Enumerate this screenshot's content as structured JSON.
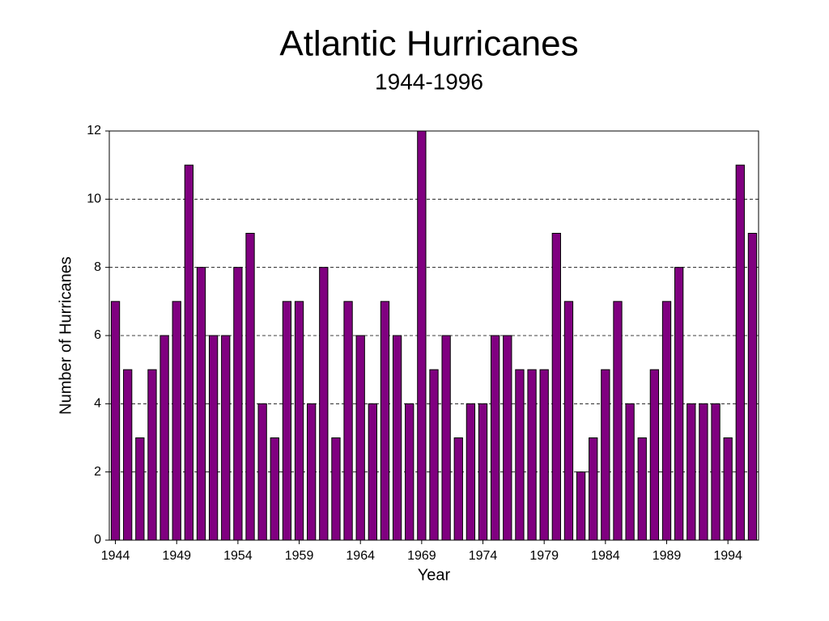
{
  "chart_data": {
    "type": "bar",
    "title": "Atlantic Hurricanes",
    "subtitle": "1944-1996",
    "x_label": "Year",
    "y_label": "Number of Hurricanes",
    "x": [
      1944,
      1945,
      1946,
      1947,
      1948,
      1949,
      1950,
      1951,
      1952,
      1953,
      1954,
      1955,
      1956,
      1957,
      1958,
      1959,
      1960,
      1961,
      1962,
      1963,
      1964,
      1965,
      1966,
      1967,
      1968,
      1969,
      1970,
      1971,
      1972,
      1973,
      1974,
      1975,
      1976,
      1977,
      1978,
      1979,
      1980,
      1981,
      1982,
      1983,
      1984,
      1985,
      1986,
      1987,
      1988,
      1989,
      1990,
      1991,
      1992,
      1993,
      1994,
      1995,
      1996
    ],
    "values": [
      7,
      5,
      3,
      5,
      6,
      7,
      11,
      8,
      6,
      6,
      8,
      9,
      4,
      3,
      7,
      7,
      4,
      8,
      3,
      7,
      6,
      4,
      7,
      6,
      4,
      12,
      5,
      6,
      3,
      4,
      4,
      6,
      6,
      5,
      5,
      5,
      9,
      7,
      2,
      3,
      5,
      7,
      4,
      3,
      5,
      7,
      8,
      4,
      4,
      4,
      3,
      11,
      9
    ],
    "color": "#800080",
    "xlim": [
      1943.5,
      1996.5
    ],
    "xticks": [
      1944,
      1949,
      1954,
      1959,
      1964,
      1969,
      1974,
      1979,
      1984,
      1989,
      1994
    ],
    "ylim": [
      0,
      12
    ],
    "yticks": [
      0,
      2,
      4,
      6,
      8,
      10,
      12
    ],
    "grid": true
  }
}
